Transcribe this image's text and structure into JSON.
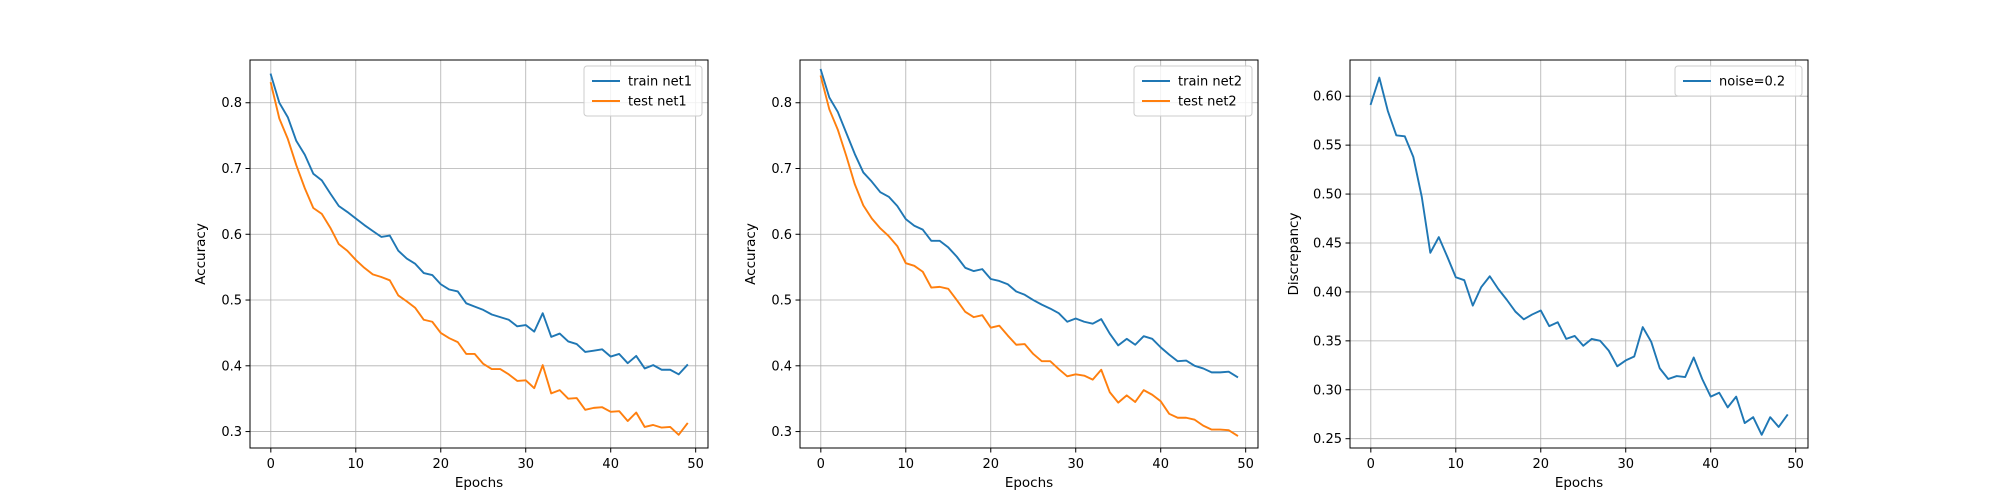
{
  "chart_data": [
    {
      "type": "line",
      "xlabel": "Epochs",
      "ylabel": "Accuracy",
      "xlim": [
        -2.45,
        51.45
      ],
      "ylim": [
        0.275,
        0.865
      ],
      "xticks": [
        0,
        10,
        20,
        30,
        40,
        50
      ],
      "xtick_labels": [
        "0",
        "10",
        "20",
        "30",
        "40",
        "50"
      ],
      "yticks": [
        0.3,
        0.4,
        0.5,
        0.6,
        0.7,
        0.8
      ],
      "ytick_labels": [
        "0.3",
        "0.4",
        "0.5",
        "0.6",
        "0.7",
        "0.8"
      ],
      "grid": true,
      "legend_position": "upper right",
      "series": [
        {
          "name": "train net1",
          "color": "#1f77b4",
          "values": [
            0.843,
            0.8,
            0.778,
            0.742,
            0.721,
            0.692,
            0.682,
            0.662,
            0.643,
            0.634,
            0.624,
            0.614,
            0.605,
            0.596,
            0.598,
            0.575,
            0.563,
            0.555,
            0.541,
            0.538,
            0.524,
            0.516,
            0.513,
            0.495,
            0.49,
            0.485,
            0.478,
            0.474,
            0.47,
            0.46,
            0.462,
            0.452,
            0.48,
            0.444,
            0.449,
            0.437,
            0.433,
            0.421,
            0.423,
            0.425,
            0.414,
            0.418,
            0.404,
            0.415,
            0.396,
            0.401,
            0.394,
            0.394,
            0.387,
            0.401
          ]
        },
        {
          "name": "test net1",
          "color": "#ff7f0e",
          "values": [
            0.83,
            0.776,
            0.745,
            0.705,
            0.67,
            0.64,
            0.631,
            0.61,
            0.585,
            0.575,
            0.561,
            0.549,
            0.539,
            0.535,
            0.53,
            0.507,
            0.498,
            0.488,
            0.47,
            0.467,
            0.45,
            0.442,
            0.436,
            0.418,
            0.418,
            0.403,
            0.395,
            0.395,
            0.387,
            0.377,
            0.378,
            0.366,
            0.401,
            0.358,
            0.363,
            0.35,
            0.351,
            0.333,
            0.336,
            0.337,
            0.33,
            0.331,
            0.316,
            0.329,
            0.307,
            0.31,
            0.306,
            0.307,
            0.295,
            0.312
          ]
        }
      ]
    },
    {
      "type": "line",
      "xlabel": "Epochs",
      "ylabel": "Accuracy",
      "xlim": [
        -2.45,
        51.45
      ],
      "ylim": [
        0.275,
        0.865
      ],
      "xticks": [
        0,
        10,
        20,
        30,
        40,
        50
      ],
      "xtick_labels": [
        "0",
        "10",
        "20",
        "30",
        "40",
        "50"
      ],
      "yticks": [
        0.3,
        0.4,
        0.5,
        0.6,
        0.7,
        0.8
      ],
      "ytick_labels": [
        "0.3",
        "0.4",
        "0.5",
        "0.6",
        "0.7",
        "0.8"
      ],
      "grid": true,
      "legend_position": "upper right",
      "series": [
        {
          "name": "train net2",
          "color": "#1f77b4",
          "values": [
            0.85,
            0.808,
            0.786,
            0.754,
            0.722,
            0.694,
            0.68,
            0.664,
            0.657,
            0.643,
            0.623,
            0.613,
            0.607,
            0.59,
            0.59,
            0.58,
            0.566,
            0.549,
            0.544,
            0.547,
            0.532,
            0.529,
            0.524,
            0.513,
            0.508,
            0.5,
            0.493,
            0.487,
            0.48,
            0.467,
            0.472,
            0.467,
            0.464,
            0.471,
            0.449,
            0.431,
            0.441,
            0.432,
            0.445,
            0.441,
            0.428,
            0.417,
            0.407,
            0.408,
            0.4,
            0.396,
            0.39,
            0.39,
            0.391,
            0.383
          ]
        },
        {
          "name": "test net2",
          "color": "#ff7f0e",
          "values": [
            0.84,
            0.79,
            0.759,
            0.719,
            0.676,
            0.644,
            0.624,
            0.609,
            0.597,
            0.582,
            0.556,
            0.552,
            0.543,
            0.519,
            0.52,
            0.517,
            0.5,
            0.482,
            0.474,
            0.477,
            0.458,
            0.461,
            0.446,
            0.432,
            0.433,
            0.418,
            0.407,
            0.407,
            0.395,
            0.384,
            0.387,
            0.385,
            0.379,
            0.394,
            0.36,
            0.344,
            0.355,
            0.345,
            0.363,
            0.356,
            0.346,
            0.327,
            0.321,
            0.321,
            0.318,
            0.309,
            0.303,
            0.303,
            0.302,
            0.294
          ]
        }
      ]
    },
    {
      "type": "line",
      "xlabel": "Epochs",
      "ylabel": "Discrepancy",
      "xlim": [
        -2.45,
        51.45
      ],
      "ylim": [
        0.2405,
        0.637
      ],
      "xticks": [
        0,
        10,
        20,
        30,
        40,
        50
      ],
      "xtick_labels": [
        "0",
        "10",
        "20",
        "30",
        "40",
        "50"
      ],
      "yticks": [
        0.25,
        0.3,
        0.35,
        0.4,
        0.45,
        0.5,
        0.55,
        0.6
      ],
      "ytick_labels": [
        "0.25",
        "0.30",
        "0.35",
        "0.40",
        "0.45",
        "0.50",
        "0.55",
        "0.60"
      ],
      "grid": true,
      "legend_position": "upper right",
      "series": [
        {
          "name": "noise=0.2",
          "color": "#1f77b4",
          "values": [
            0.592,
            0.619,
            0.585,
            0.56,
            0.559,
            0.538,
            0.497,
            0.44,
            0.456,
            0.436,
            0.415,
            0.412,
            0.386,
            0.405,
            0.416,
            0.403,
            0.392,
            0.38,
            0.372,
            0.377,
            0.381,
            0.365,
            0.369,
            0.352,
            0.355,
            0.345,
            0.352,
            0.35,
            0.34,
            0.324,
            0.33,
            0.334,
            0.364,
            0.349,
            0.322,
            0.311,
            0.314,
            0.313,
            0.333,
            0.311,
            0.293,
            0.297,
            0.282,
            0.293,
            0.266,
            0.272,
            0.254,
            0.272,
            0.262,
            0.274
          ]
        }
      ]
    }
  ]
}
